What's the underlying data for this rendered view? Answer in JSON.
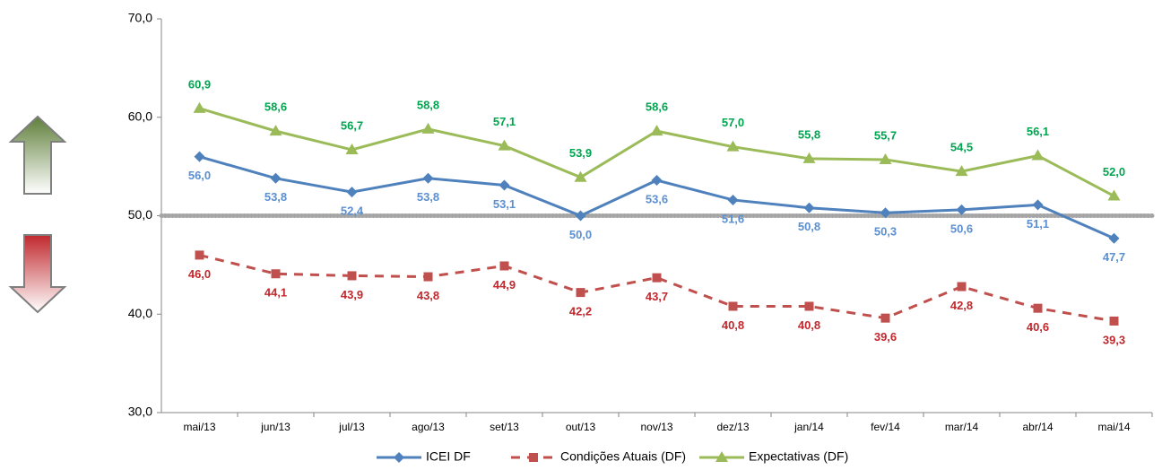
{
  "chart_data": {
    "type": "line",
    "categories": [
      "mai/13",
      "jun/13",
      "jul/13",
      "ago/13",
      "set/13",
      "out/13",
      "nov/13",
      "dez/13",
      "jan/14",
      "fev/14",
      "mar/14",
      "abr/14",
      "mai/14"
    ],
    "ylim": [
      30,
      70
    ],
    "yticks": [
      {
        "value": 30,
        "label": "30,0"
      },
      {
        "value": 40,
        "label": "40,0"
      },
      {
        "value": 50,
        "label": "50,0"
      },
      {
        "value": 60,
        "label": "60,0"
      },
      {
        "value": 70,
        "label": "70,0"
      }
    ],
    "reference_line": {
      "value": 50,
      "color": "#a6a6a6"
    },
    "series": [
      {
        "name": "ICEI DF",
        "color": "#4f81bd",
        "marker": "diamond",
        "dash": false,
        "label_position": "below",
        "label_color": "#5b8fd0",
        "values": [
          56.0,
          53.8,
          52.4,
          53.8,
          53.1,
          50.0,
          53.6,
          51.6,
          50.8,
          50.3,
          50.6,
          51.1,
          47.7
        ],
        "value_labels": [
          "56,0",
          "53,8",
          "52,4",
          "53,8",
          "53,1",
          "50,0",
          "53,6",
          "51,6",
          "50,8",
          "50,3",
          "50,6",
          "51,1",
          "47,7"
        ]
      },
      {
        "name": "Condições Atuais (DF)",
        "color": "#c0504d",
        "marker": "square",
        "dash": true,
        "label_position": "below",
        "label_color": "#c0282d",
        "values": [
          46.0,
          44.1,
          43.9,
          43.8,
          44.9,
          42.2,
          43.7,
          40.8,
          40.8,
          39.6,
          42.8,
          40.6,
          39.3
        ],
        "value_labels": [
          "46,0",
          "44,1",
          "43,9",
          "43,8",
          "44,9",
          "42,2",
          "43,7",
          "40,8",
          "40,8",
          "39,6",
          "42,8",
          "40,6",
          "39,3"
        ]
      },
      {
        "name": "Expectativas (DF)",
        "color": "#9bbb59",
        "marker": "triangle",
        "dash": false,
        "label_position": "above",
        "label_color": "#00a550",
        "values": [
          60.9,
          58.6,
          56.7,
          58.8,
          57.1,
          53.9,
          58.6,
          57.0,
          55.8,
          55.7,
          54.5,
          56.1,
          52.0
        ],
        "value_labels": [
          "60,9",
          "58,6",
          "56,7",
          "58,8",
          "57,1",
          "53,9",
          "58,6",
          "57,0",
          "55,8",
          "55,7",
          "54,5",
          "56,1",
          "52,0"
        ]
      }
    ]
  }
}
